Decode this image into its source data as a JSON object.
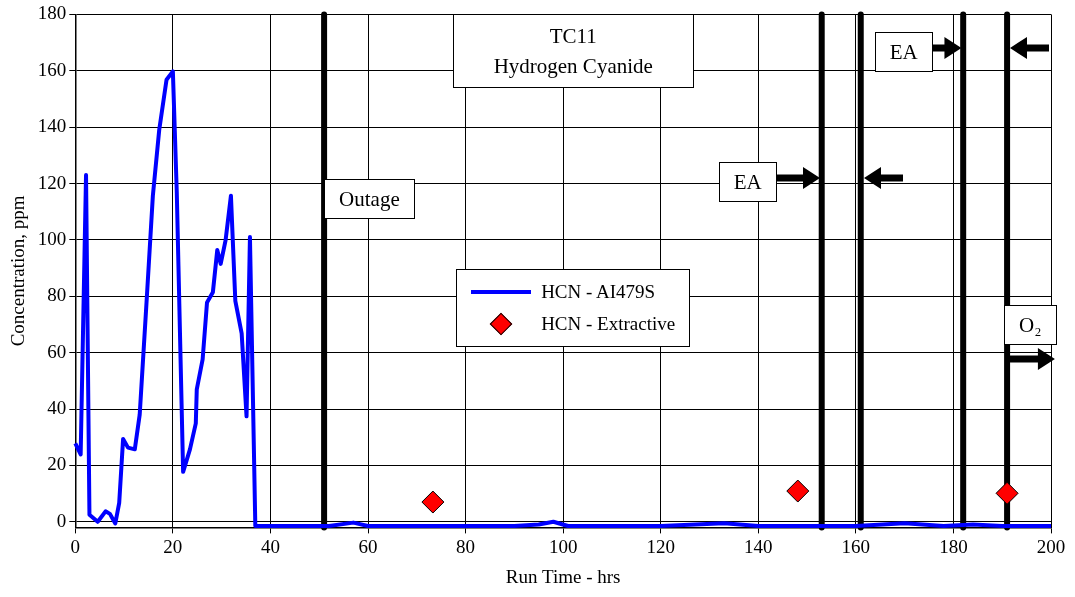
{
  "chart_data": {
    "type": "line",
    "title": "TC11\nHydrogen Cyanide",
    "xlabel": "Run Time - hrs",
    "ylabel": "Concentration, ppm",
    "series": [
      {
        "name": "HCN - AI479S",
        "color": "#0000ff",
        "marker": "none",
        "x": [
          0,
          1.1,
          2.2,
          2.9,
          4.6,
          6.2,
          7.1,
          8.2,
          9.0,
          9.8,
          10.8,
          12.2,
          13.2,
          14.6,
          15.9,
          17.2,
          18.7,
          20,
          20.8,
          22.1,
          23.5,
          24.7,
          24.9,
          26.1,
          27,
          28.2,
          29.1,
          29.8,
          30.8,
          31.9,
          32.8,
          34.1,
          35.1,
          35.8,
          36.9,
          45,
          52,
          57,
          60,
          70,
          80,
          90,
          95,
          98,
          101,
          110,
          120,
          133,
          140,
          150,
          160,
          170,
          178,
          184,
          190,
          200
        ],
        "values": [
          27.8,
          23.9,
          123,
          2.5,
          0,
          3.7,
          2.8,
          -0.6,
          6.7,
          29.4,
          26.3,
          25.7,
          38,
          77.8,
          115.7,
          139,
          156.8,
          159.8,
          117,
          17.7,
          25.7,
          34.9,
          47,
          57.6,
          77.8,
          81.4,
          96.4,
          91.5,
          99.8,
          115.7,
          78.4,
          66.8,
          37.4,
          101,
          -1.5,
          -1.5,
          -1.5,
          -0.3,
          -1.5,
          -1.5,
          -1.5,
          -1.5,
          -1,
          0,
          -1.5,
          -1.5,
          -1.5,
          -0.5,
          -1.5,
          -1.5,
          -1.5,
          -0.5,
          -1.5,
          -1,
          -1.5,
          -1.5
        ]
      },
      {
        "name": "HCN - Extractive",
        "type": "scatter",
        "color": "#ff0000",
        "marker": "diamond",
        "x": [
          73.3,
          148.1,
          191
        ],
        "values": [
          7.0,
          10.9,
          10.1
        ]
      }
    ],
    "xlim": [
      0,
      200
    ],
    "xticks": [
      0,
      20,
      40,
      60,
      80,
      100,
      120,
      140,
      160,
      180,
      200
    ],
    "ylim": [
      -2,
      180
    ],
    "yticks": [
      0,
      20,
      40,
      60,
      80,
      100,
      120,
      140,
      160,
      180
    ],
    "grid": true,
    "legend": "center",
    "ref_lines": [
      {
        "axis": "x",
        "value": 51,
        "color": "#000000"
      },
      {
        "axis": "x",
        "value": 153,
        "color": "#000000"
      },
      {
        "axis": "x",
        "value": 161,
        "color": "#000000"
      },
      {
        "axis": "x",
        "value": 182,
        "color": "#000000"
      },
      {
        "axis": "x",
        "value": 191,
        "color": "#000000"
      }
    ],
    "annotations": [
      {
        "text": "Outage",
        "x": 51,
        "y": 114.6
      },
      {
        "text": "EA",
        "x": 153,
        "y": 122
      },
      {
        "text": "EA",
        "x": 182,
        "y": 168
      },
      {
        "text": "O₂",
        "x": 191,
        "y": 57.7
      }
    ]
  }
}
